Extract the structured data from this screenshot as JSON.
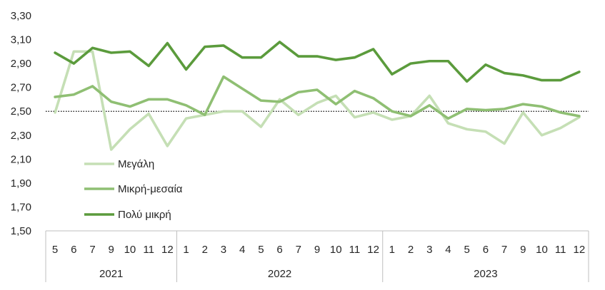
{
  "chart_data": {
    "type": "line",
    "ylim": [
      1.5,
      3.3
    ],
    "y_ticks": [
      "1,50",
      "1,70",
      "1,90",
      "2,10",
      "2,30",
      "2,50",
      "2,70",
      "2,90",
      "3,10",
      "3,30"
    ],
    "grid": false,
    "reference_line": 2.5,
    "legend_position": "left-center",
    "categories": [
      "5",
      "6",
      "7",
      "9",
      "10",
      "11",
      "12",
      "1",
      "2",
      "3",
      "4",
      "5",
      "6",
      "7",
      "9",
      "10",
      "11",
      "12",
      "1",
      "2",
      "3",
      "4",
      "5",
      "6",
      "7",
      "9",
      "10",
      "11",
      "12"
    ],
    "year_groups": [
      {
        "label": "2021",
        "count": 7
      },
      {
        "label": "2022",
        "count": 11
      },
      {
        "label": "2023",
        "count": 11
      }
    ],
    "series": [
      {
        "name": "Μεγάλη",
        "color": "#c5dfb5",
        "values": [
          2.49,
          3.0,
          3.0,
          2.18,
          2.35,
          2.48,
          2.21,
          2.44,
          2.47,
          2.5,
          2.5,
          2.37,
          2.6,
          2.47,
          2.57,
          2.63,
          2.45,
          2.49,
          2.43,
          2.46,
          2.63,
          2.4,
          2.35,
          2.33,
          2.23,
          2.49,
          2.3,
          2.36,
          2.45
        ]
      },
      {
        "name": "Μικρή-μεσαία",
        "color": "#8fbf73",
        "values": [
          2.62,
          2.64,
          2.71,
          2.58,
          2.54,
          2.6,
          2.6,
          2.55,
          2.47,
          2.79,
          2.69,
          2.59,
          2.58,
          2.66,
          2.68,
          2.56,
          2.67,
          2.61,
          2.5,
          2.46,
          2.55,
          2.44,
          2.52,
          2.51,
          2.52,
          2.56,
          2.54,
          2.49,
          2.46
        ]
      },
      {
        "name": "Πολύ μικρή",
        "color": "#5b9b3c",
        "values": [
          2.99,
          2.9,
          3.03,
          2.99,
          3.0,
          2.88,
          3.07,
          2.85,
          3.04,
          3.05,
          2.95,
          2.95,
          3.08,
          2.96,
          2.96,
          2.93,
          2.95,
          3.02,
          2.81,
          2.9,
          2.92,
          2.92,
          2.75,
          2.89,
          2.82,
          2.8,
          2.76,
          2.76,
          2.83
        ]
      }
    ]
  }
}
